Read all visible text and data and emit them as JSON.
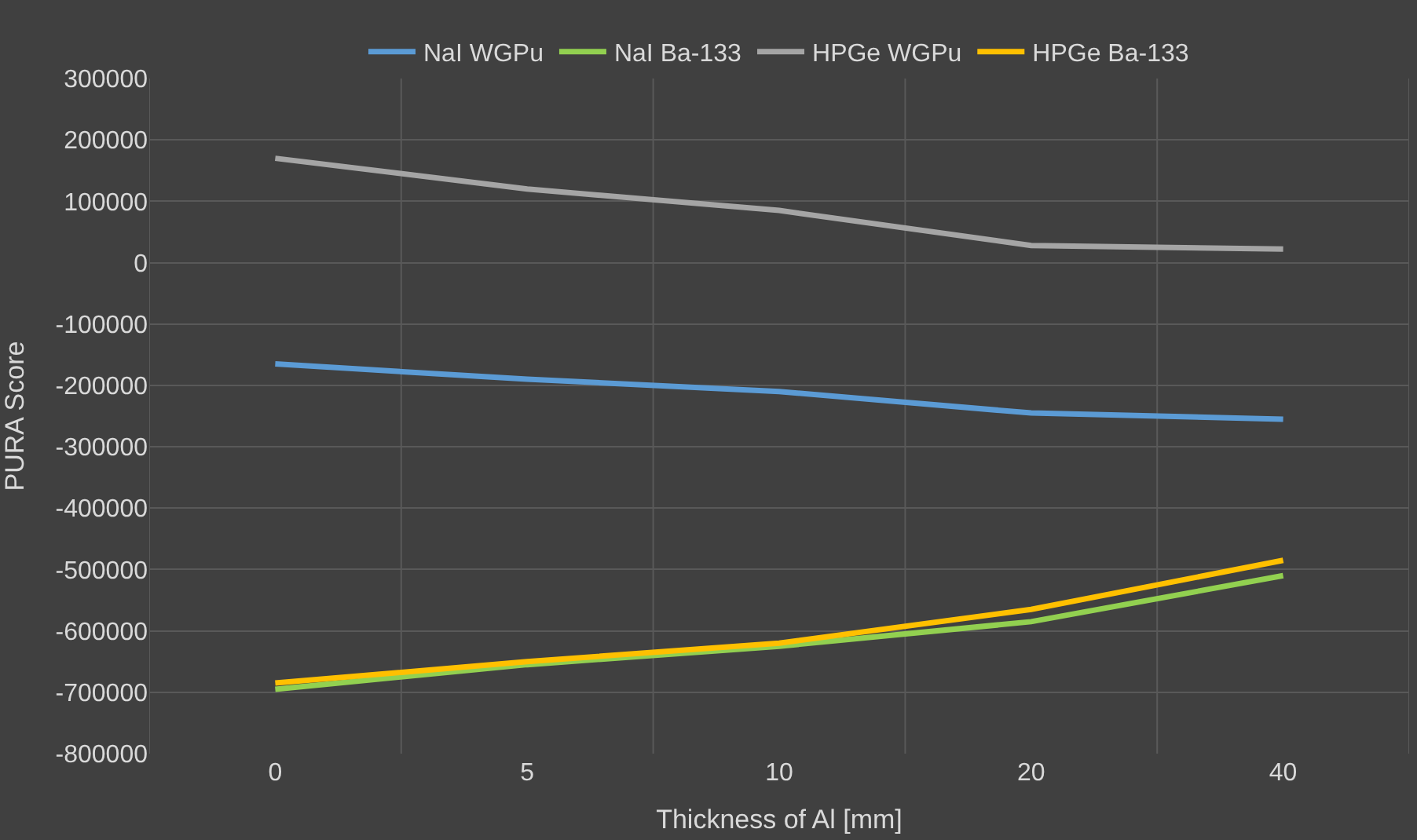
{
  "chart_data": {
    "type": "line",
    "xlabel": "Thickness of Al [mm]",
    "ylabel": "PURA Score",
    "categories": [
      "0",
      "5",
      "10",
      "20",
      "40"
    ],
    "series": [
      {
        "name": "NaI WGPu",
        "color": "#5b9bd5",
        "values": [
          -165000,
          -190000,
          -210000,
          -245000,
          -255000
        ]
      },
      {
        "name": "NaI Ba-133",
        "color": "#92d050",
        "values": [
          -695000,
          -655000,
          -625000,
          -585000,
          -510000
        ]
      },
      {
        "name": "HPGe WGPu",
        "color": "#a5a5a5",
        "values": [
          170000,
          120000,
          85000,
          28000,
          22000
        ]
      },
      {
        "name": "HPGe Ba-133",
        "color": "#ffc000",
        "values": [
          -685000,
          -650000,
          -620000,
          -565000,
          -485000
        ]
      }
    ],
    "ylim": [
      -800000,
      300000
    ],
    "yticks": [
      -800000,
      -700000,
      -600000,
      -500000,
      -400000,
      -300000,
      -200000,
      -100000,
      0,
      100000,
      200000,
      300000
    ],
    "grid": true,
    "legend": "top",
    "marker": "none",
    "line_style": "solid"
  }
}
